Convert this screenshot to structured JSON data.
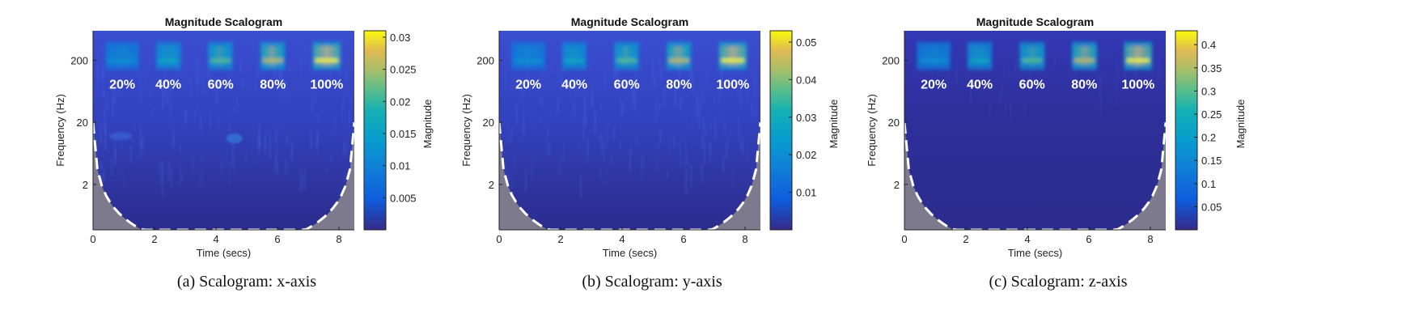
{
  "figure": {
    "panels": [
      {
        "subcaption": "(a)  Scalogram: x-axis",
        "chart_title": "Magnitude Scalogram",
        "xlabel": "Time (secs)",
        "ylabel": "Frequency (Hz)",
        "colorbar_label": "Magnitude",
        "colorbar_ticks": [
          "0.005",
          "0.01",
          "0.015",
          "0.02",
          "0.025",
          "0.03"
        ],
        "colorbar_range": [
          0,
          0.031
        ],
        "annotations": [
          "20%",
          "40%",
          "60%",
          "80%",
          "100%"
        ]
      },
      {
        "subcaption": "(b)  Scalogram: y-axis",
        "chart_title": "Magnitude Scalogram",
        "xlabel": "Time (secs)",
        "ylabel": "Frequency (Hz)",
        "colorbar_label": "Magnitude",
        "colorbar_ticks": [
          "0.01",
          "0.02",
          "0.03",
          "0.04",
          "0.05"
        ],
        "colorbar_range": [
          0,
          0.053
        ],
        "annotations": [
          "20%",
          "40%",
          "60%",
          "80%",
          "100%"
        ]
      },
      {
        "subcaption": "(c)  Scalogram: z-axis",
        "chart_title": "Magnitude Scalogram",
        "xlabel": "Time (secs)",
        "ylabel": "Frequency (Hz)",
        "colorbar_label": "Magnitude",
        "colorbar_ticks": [
          "0.05",
          "0.1",
          "0.15",
          "0.2",
          "0.25",
          "0.3",
          "0.35",
          "0.4"
        ],
        "colorbar_range": [
          0,
          0.43
        ],
        "annotations": [
          "20%",
          "40%",
          "60%",
          "80%",
          "100%"
        ]
      }
    ]
  },
  "chart_data": [
    {
      "type": "heatmap",
      "title": "Magnitude Scalogram",
      "xlabel": "Time (secs)",
      "ylabel": "Frequency (Hz)",
      "x_ticks": [
        0,
        2,
        4,
        6,
        8
      ],
      "x_tick_labels": [
        "0",
        "2",
        "4",
        "6",
        "8"
      ],
      "xlim": [
        0,
        8.5
      ],
      "y_scale": "log",
      "y_ticks": [
        2,
        20,
        200
      ],
      "y_tick_labels": [
        "2",
        "20",
        "200"
      ],
      "ylim": [
        0.37,
        600
      ],
      "colorbar": {
        "label": "Magnitude",
        "range": [
          0,
          0.031
        ],
        "ticks": [
          0.005,
          0.01,
          0.015,
          0.02,
          0.025,
          0.03
        ]
      },
      "bursts": [
        {
          "label": "20%",
          "t_start": 0.4,
          "t_end": 1.5,
          "freq_hz": 200,
          "relative_intensity": 0.2
        },
        {
          "label": "40%",
          "t_start": 2.05,
          "t_end": 2.85,
          "freq_hz": 200,
          "relative_intensity": 0.4
        },
        {
          "label": "60%",
          "t_start": 3.75,
          "t_end": 4.55,
          "freq_hz": 200,
          "relative_intensity": 0.6
        },
        {
          "label": "80%",
          "t_start": 5.45,
          "t_end": 6.25,
          "freq_hz": 200,
          "relative_intensity": 0.8
        },
        {
          "label": "100%",
          "t_start": 7.15,
          "t_end": 8.05,
          "freq_hz": 200,
          "relative_intensity": 1.0
        }
      ],
      "cone_of_influence": "dashed white boundary, shaded outside"
    },
    {
      "type": "heatmap",
      "title": "Magnitude Scalogram",
      "xlabel": "Time (secs)",
      "ylabel": "Frequency (Hz)",
      "x_ticks": [
        0,
        2,
        4,
        6,
        8
      ],
      "x_tick_labels": [
        "0",
        "2",
        "4",
        "6",
        "8"
      ],
      "xlim": [
        0,
        8.5
      ],
      "y_scale": "log",
      "y_ticks": [
        2,
        20,
        200
      ],
      "y_tick_labels": [
        "2",
        "20",
        "200"
      ],
      "ylim": [
        0.37,
        600
      ],
      "colorbar": {
        "label": "Magnitude",
        "range": [
          0,
          0.053
        ],
        "ticks": [
          0.01,
          0.02,
          0.03,
          0.04,
          0.05
        ]
      },
      "bursts": [
        {
          "label": "20%",
          "t_start": 0.4,
          "t_end": 1.5,
          "freq_hz": 200,
          "relative_intensity": 0.2
        },
        {
          "label": "40%",
          "t_start": 2.05,
          "t_end": 2.85,
          "freq_hz": 200,
          "relative_intensity": 0.4
        },
        {
          "label": "60%",
          "t_start": 3.75,
          "t_end": 4.55,
          "freq_hz": 200,
          "relative_intensity": 0.6
        },
        {
          "label": "80%",
          "t_start": 5.45,
          "t_end": 6.25,
          "freq_hz": 200,
          "relative_intensity": 0.8
        },
        {
          "label": "100%",
          "t_start": 7.15,
          "t_end": 8.05,
          "freq_hz": 200,
          "relative_intensity": 1.0
        }
      ],
      "cone_of_influence": "dashed white boundary, shaded outside"
    },
    {
      "type": "heatmap",
      "title": "Magnitude Scalogram",
      "xlabel": "Time (secs)",
      "ylabel": "Frequency (Hz)",
      "x_ticks": [
        0,
        2,
        4,
        6,
        8
      ],
      "x_tick_labels": [
        "0",
        "2",
        "4",
        "6",
        "8"
      ],
      "xlim": [
        0,
        8.5
      ],
      "y_scale": "log",
      "y_ticks": [
        2,
        20,
        200
      ],
      "y_tick_labels": [
        "2",
        "20",
        "200"
      ],
      "ylim": [
        0.37,
        600
      ],
      "colorbar": {
        "label": "Magnitude",
        "range": [
          0,
          0.43
        ],
        "ticks": [
          0.05,
          0.1,
          0.15,
          0.2,
          0.25,
          0.3,
          0.35,
          0.4
        ]
      },
      "bursts": [
        {
          "label": "20%",
          "t_start": 0.4,
          "t_end": 1.5,
          "freq_hz": 200,
          "relative_intensity": 0.2
        },
        {
          "label": "40%",
          "t_start": 2.05,
          "t_end": 2.85,
          "freq_hz": 200,
          "relative_intensity": 0.4
        },
        {
          "label": "60%",
          "t_start": 3.75,
          "t_end": 4.55,
          "freq_hz": 200,
          "relative_intensity": 0.6
        },
        {
          "label": "80%",
          "t_start": 5.45,
          "t_end": 6.25,
          "freq_hz": 200,
          "relative_intensity": 0.8
        },
        {
          "label": "100%",
          "t_start": 7.15,
          "t_end": 8.05,
          "freq_hz": 200,
          "relative_intensity": 1.0
        }
      ],
      "cone_of_influence": "dashed white boundary, shaded outside"
    }
  ],
  "colors": {
    "field_dark": "#2b2c8c",
    "field_mid": "#3036b8",
    "outside_cone": "#7e7a8e",
    "cone_line": "#ffffff",
    "annotation_text": "#ffffff"
  }
}
